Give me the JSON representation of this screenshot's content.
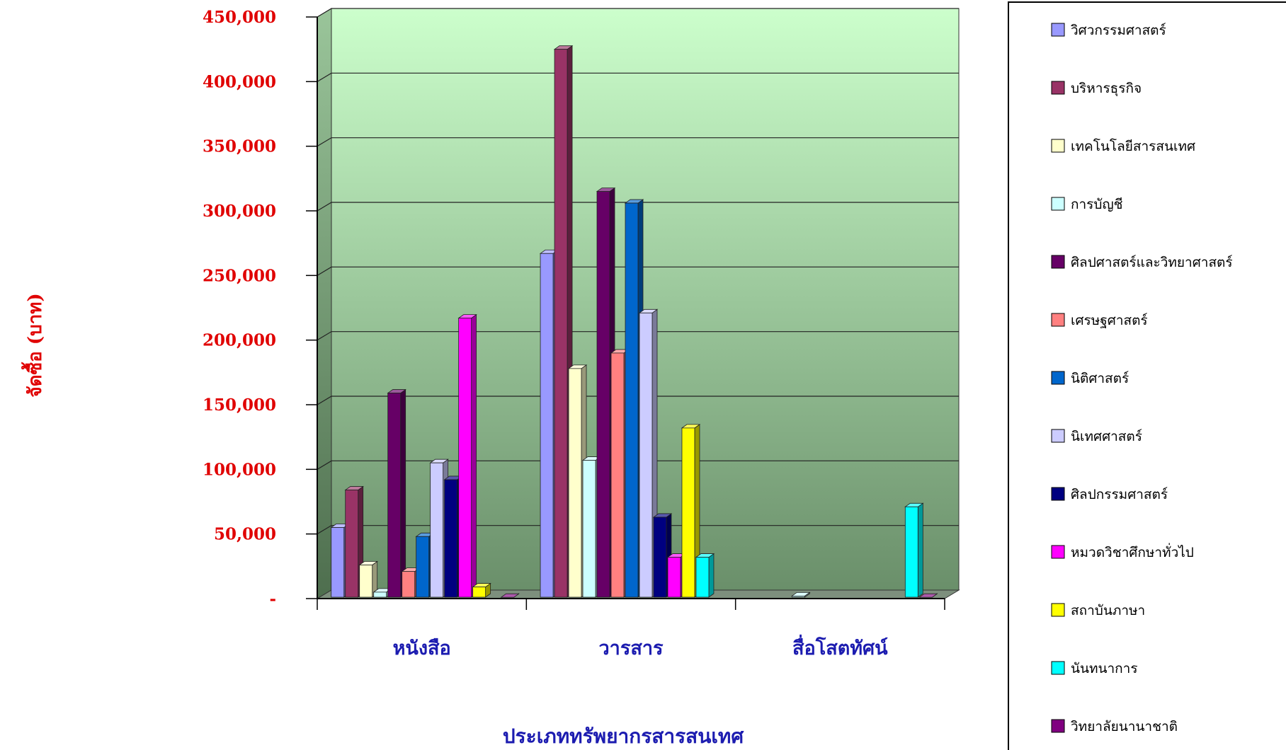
{
  "chart_data": {
    "type": "bar",
    "title": "",
    "xlabel": "ประเภททรัพยากรสารสนเทศ",
    "ylabel": "จัดซื้อ (บาท)",
    "ylim": [
      0,
      450000
    ],
    "yticks": [
      0,
      50000,
      100000,
      150000,
      200000,
      250000,
      300000,
      350000,
      400000,
      450000
    ],
    "ytick_labels": [
      "-",
      "50,000",
      "100,000",
      "150,000",
      "200,000",
      "250,000",
      "300,000",
      "350,000",
      "400,000",
      "450,000"
    ],
    "categories": [
      "หนังสือ",
      "วารสาร",
      "สื่อโสตทัศน์"
    ],
    "grid": true,
    "legend_position": "right",
    "three_d": true,
    "series": [
      {
        "name": "วิศวกรรมศาสตร์",
        "color": "#9999FF",
        "values": [
          55000,
          267000,
          0
        ]
      },
      {
        "name": "บริหารธุรกิจ",
        "color": "#993366",
        "values": [
          84000,
          425000,
          0
        ]
      },
      {
        "name": "เทคโนโลยีสารสนเทศ",
        "color": "#FFFFCC",
        "values": [
          26000,
          178000,
          0
        ]
      },
      {
        "name": "การบัญชี",
        "color": "#CCFFFF",
        "values": [
          5000,
          107000,
          2000
        ]
      },
      {
        "name": "ศิลปศาสตร์และวิทยาศาสตร์",
        "color": "#660066",
        "values": [
          159000,
          315000,
          0
        ]
      },
      {
        "name": "เศรษฐศาสตร์",
        "color": "#FF8080",
        "values": [
          21000,
          190000,
          0
        ]
      },
      {
        "name": "นิติศาสตร์",
        "color": "#0066CC",
        "values": [
          48000,
          306000,
          0
        ]
      },
      {
        "name": "นิเทศศาสตร์",
        "color": "#CCCCFF",
        "values": [
          105000,
          221000,
          0
        ]
      },
      {
        "name": "ศิลปกรรมศาสตร์",
        "color": "#000080",
        "values": [
          92000,
          63000,
          0
        ]
      },
      {
        "name": "หมวดวิชาศึกษาทั่วไป",
        "color": "#FF00FF",
        "values": [
          217000,
          32000,
          0
        ]
      },
      {
        "name": "สถาบันภาษา",
        "color": "#FFFF00",
        "values": [
          9000,
          132000,
          0
        ]
      },
      {
        "name": "นันทนาการ",
        "color": "#00FFFF",
        "values": [
          0,
          32000,
          71000
        ]
      },
      {
        "name": "วิทยาลัยนานาชาติ",
        "color": "#800080",
        "values": [
          1000,
          0,
          1000
        ]
      }
    ]
  }
}
